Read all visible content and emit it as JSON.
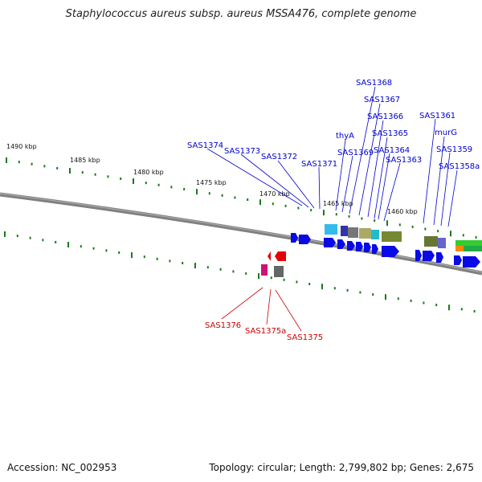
{
  "title": "Staphylococcus aureus subsp. aureus MSSA476, complete genome",
  "footer": {
    "accession": "Accession: NC_002953",
    "topology": "Topology: circular; Length: 2,799,802 bp; Genes: 2,675"
  },
  "kbp_labels": [
    "1490 kbp",
    "1485 kbp",
    "1480 kbp",
    "1475 kbp",
    "1470 kbp",
    "1465 kbp",
    "1460 kbp"
  ],
  "genes_top": [
    "SAS1368",
    "SAS1367",
    "SAS1366",
    "SAS1365",
    "thyA",
    "SAS1369",
    "SAS1364",
    "SAS1363",
    "SAS1374",
    "SAS1373",
    "SAS1372",
    "SAS1371",
    "SAS1361",
    "murG",
    "SAS1359",
    "SAS1358a"
  ],
  "genes_bottom": [
    "SAS1376",
    "SAS1375a",
    "SAS1375"
  ],
  "colors": {
    "forward_label": "#0000cc",
    "reverse_label": "#cc0000",
    "tick": "#1a7a1a",
    "forward_gene": "#0a0ae6",
    "reverse_gene": "#e60000",
    "backbone": "#808080"
  }
}
